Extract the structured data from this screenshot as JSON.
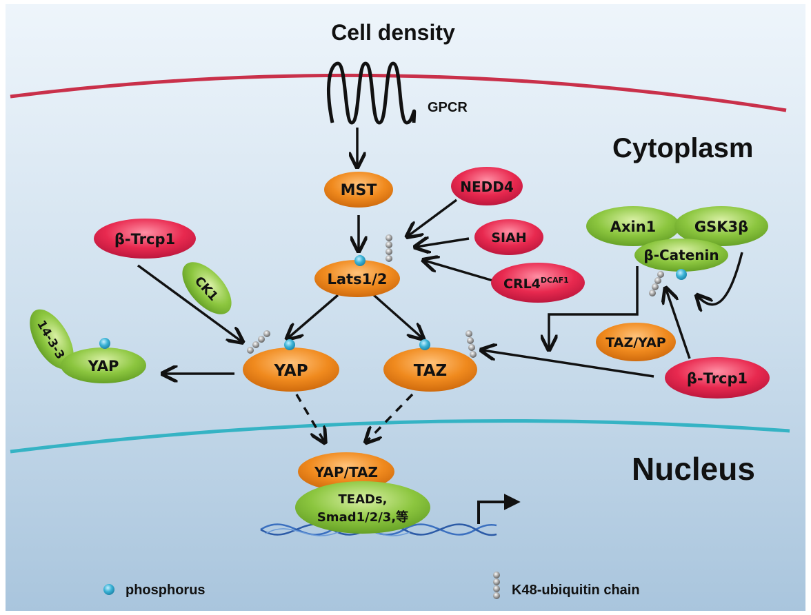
{
  "labels": {
    "cell_density": "Cell density",
    "gpcr": "GPCR",
    "cytoplasm": "Cytoplasm",
    "nucleus": "Nucleus"
  },
  "nodes": {
    "mst": "MST",
    "nedd4": "NEDD4",
    "siah": "SIAH",
    "crl4": "CRL4",
    "crl4_sup": "DCAF1",
    "lats": "Lats1/2",
    "btrcp1_left": "β-Trcp1",
    "ck1": "CK1",
    "axin1": "Axin1",
    "gsk3b": "GSK3β",
    "bcatenin": "β-Catenin",
    "p1433": "14-3-3",
    "yap_bound": "YAP",
    "yap": "YAP",
    "taz": "TAZ",
    "tazyap": "TAZ/YAP",
    "btrcp1_right": "β-Trcp1",
    "yaptaz": "YAP/TAZ",
    "teads_line1": "TEADs,",
    "teads_line2": "Smad1/2/3,等"
  },
  "legend": {
    "phosphorus": "phosphorus",
    "ubiquitin": "K48-ubiquitin  chain"
  },
  "colors": {
    "orange": "#f08a1e",
    "red": "#e8294f",
    "green": "#8cc63f",
    "membrane": "#c9304a",
    "nuclear_membrane": "#35b3c4",
    "phosphate": "#3bb3d6",
    "background_top": "#dfecf7",
    "background_bottom": "#a9c5dd"
  }
}
